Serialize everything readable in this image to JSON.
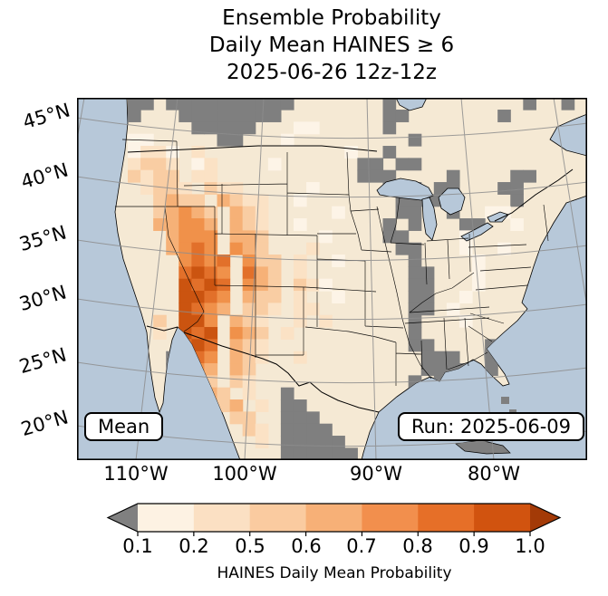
{
  "title": {
    "line1": "Ensemble Probability",
    "line2": "Daily Mean HAINES ≥ 6",
    "line3": "2025-06-26 12z-12z"
  },
  "map": {
    "lat_labels": [
      "45°N",
      "40°N",
      "35°N",
      "30°N",
      "25°N",
      "20°N"
    ],
    "lon_labels": [
      "110°W",
      "100°W",
      "90°W",
      "80°W"
    ],
    "mean_box": "Mean",
    "run_box": "Run: 2025-06-09"
  },
  "colorbar": {
    "ticks": [
      "0.1",
      "0.2",
      "0.5",
      "0.6",
      "0.7",
      "0.8",
      "0.9",
      "1.0"
    ],
    "label": "HAINES Daily Mean Probability",
    "under_color": "#808080",
    "over_color": "#a33a07",
    "segment_colors": [
      "#fdf2e3",
      "#fbe0c3",
      "#facba0",
      "#f7b077",
      "#f28f4d",
      "#e66f28",
      "#d1530f"
    ]
  },
  "colors": {
    "ocean": "#b7c8d9",
    "land": "#f5e9d4",
    "mask_gray": "#7f7f7f",
    "grid": "#8d8d8d",
    "bg": "#ffffff"
  },
  "raster": {
    "cols": 40,
    "rows": 30,
    "class_colors": {
      "a": "#fdf4e7",
      "b": "#fbe2c5",
      "c": "#f9cda3",
      "d": "#f6b177",
      "e": "#f0914a",
      "f": "#e2702a",
      "g": "#cb5410",
      "x": "#7f7f7f"
    },
    "runs": [
      [
        0,
        4,
        "xx"
      ],
      [
        0,
        7,
        "xxxxxxxxxx"
      ],
      [
        0,
        24,
        "x"
      ],
      [
        0,
        35,
        "x"
      ],
      [
        0,
        38,
        "x"
      ],
      [
        1,
        4,
        "x"
      ],
      [
        1,
        8,
        "xxxxxxxx"
      ],
      [
        1,
        24,
        "xx"
      ],
      [
        1,
        33,
        "x"
      ],
      [
        2,
        9,
        "xxxxx"
      ],
      [
        2,
        17,
        "aa"
      ],
      [
        2,
        24,
        "x"
      ],
      [
        3,
        4,
        "aa"
      ],
      [
        3,
        11,
        "xx"
      ],
      [
        3,
        16,
        "a"
      ],
      [
        3,
        26,
        "x"
      ],
      [
        4,
        4,
        "abba"
      ],
      [
        4,
        9,
        "b"
      ],
      [
        4,
        21,
        "a"
      ],
      [
        4,
        24,
        "x"
      ],
      [
        5,
        4,
        "bccb"
      ],
      [
        5,
        9,
        "ab"
      ],
      [
        5,
        15,
        "a"
      ],
      [
        5,
        22,
        "xx"
      ],
      [
        5,
        25,
        "xx"
      ],
      [
        6,
        4,
        "cbcc"
      ],
      [
        6,
        9,
        "bb"
      ],
      [
        6,
        22,
        "xxx"
      ],
      [
        6,
        29,
        "x"
      ],
      [
        6,
        34,
        "xx"
      ],
      [
        7,
        5,
        "bccb"
      ],
      [
        7,
        10,
        "cbb"
      ],
      [
        7,
        18,
        "a"
      ],
      [
        7,
        24,
        "xxx"
      ],
      [
        7,
        28,
        "xx"
      ],
      [
        7,
        33,
        "xx"
      ],
      [
        8,
        6,
        "cdcc"
      ],
      [
        8,
        11,
        "dcbb"
      ],
      [
        8,
        17,
        "a"
      ],
      [
        8,
        25,
        "xxxx"
      ],
      [
        8,
        34,
        "x"
      ],
      [
        9,
        6,
        "cdedc"
      ],
      [
        9,
        12,
        "dcb"
      ],
      [
        9,
        20,
        "a"
      ],
      [
        9,
        25,
        "xx"
      ],
      [
        9,
        29,
        "x"
      ],
      [
        9,
        32,
        "aa"
      ],
      [
        10,
        6,
        "ddeed"
      ],
      [
        10,
        12,
        "dcb"
      ],
      [
        10,
        17,
        "a"
      ],
      [
        10,
        24,
        "x"
      ],
      [
        10,
        26,
        "x"
      ],
      [
        10,
        30,
        "xx"
      ],
      [
        10,
        34,
        "a"
      ],
      [
        11,
        7,
        "deee"
      ],
      [
        11,
        12,
        "ddc"
      ],
      [
        11,
        19,
        "a"
      ],
      [
        11,
        24,
        "xx"
      ],
      [
        11,
        30,
        "a"
      ],
      [
        12,
        7,
        "defe"
      ],
      [
        12,
        12,
        "edc"
      ],
      [
        12,
        18,
        "b"
      ],
      [
        12,
        25,
        "xx"
      ],
      [
        12,
        30,
        "a"
      ],
      [
        12,
        33,
        "a"
      ],
      [
        13,
        8,
        "efef"
      ],
      [
        13,
        13,
        "ecc"
      ],
      [
        13,
        17,
        "b"
      ],
      [
        13,
        20,
        "a"
      ],
      [
        13,
        26,
        "x"
      ],
      [
        13,
        31,
        "a"
      ],
      [
        14,
        8,
        "fgfe"
      ],
      [
        14,
        13,
        "fdc"
      ],
      [
        14,
        17,
        "b"
      ],
      [
        14,
        26,
        "xx"
      ],
      [
        14,
        31,
        "a"
      ],
      [
        15,
        8,
        "gfgf"
      ],
      [
        15,
        13,
        "edc"
      ],
      [
        15,
        17,
        "cb"
      ],
      [
        15,
        19,
        "a"
      ],
      [
        15,
        26,
        "xx"
      ],
      [
        15,
        31,
        "a"
      ],
      [
        16,
        8,
        "ggfe"
      ],
      [
        16,
        13,
        "dcc"
      ],
      [
        16,
        17,
        "b"
      ],
      [
        16,
        20,
        "a"
      ],
      [
        16,
        26,
        "xx"
      ],
      [
        16,
        30,
        "a"
      ],
      [
        17,
        8,
        "gfed"
      ],
      [
        17,
        13,
        "ccb"
      ],
      [
        17,
        17,
        "bb"
      ],
      [
        17,
        26,
        "xx"
      ],
      [
        17,
        29,
        "a"
      ],
      [
        18,
        6,
        "c"
      ],
      [
        18,
        8,
        "gge"
      ],
      [
        18,
        12,
        "dcb"
      ],
      [
        18,
        17,
        "b"
      ],
      [
        18,
        19,
        "b"
      ],
      [
        18,
        26,
        "x"
      ],
      [
        18,
        30,
        "a"
      ],
      [
        19,
        6,
        "b"
      ],
      [
        19,
        8,
        "gfg"
      ],
      [
        19,
        12,
        "edc"
      ],
      [
        19,
        16,
        "b"
      ],
      [
        19,
        26,
        "x"
      ],
      [
        20,
        8,
        "fgf"
      ],
      [
        20,
        12,
        "dcb"
      ],
      [
        20,
        26,
        "xx"
      ],
      [
        20,
        32,
        "x"
      ],
      [
        21,
        7,
        "x"
      ],
      [
        21,
        9,
        "fe"
      ],
      [
        21,
        12,
        "dcb"
      ],
      [
        21,
        17,
        "b"
      ],
      [
        21,
        27,
        "xxx"
      ],
      [
        21,
        32,
        "x"
      ],
      [
        22,
        7,
        "x"
      ],
      [
        22,
        9,
        "ed"
      ],
      [
        22,
        12,
        "dc"
      ],
      [
        22,
        27,
        "xxxx"
      ],
      [
        22,
        32,
        "x"
      ],
      [
        23,
        9,
        "dc"
      ],
      [
        23,
        12,
        "cb"
      ],
      [
        23,
        26,
        "x"
      ],
      [
        23,
        28,
        "x"
      ],
      [
        23,
        31,
        "x"
      ],
      [
        24,
        10,
        "dc"
      ],
      [
        24,
        13,
        "b"
      ],
      [
        24,
        16,
        "x"
      ],
      [
        24,
        31,
        "x"
      ],
      [
        25,
        11,
        "cd"
      ],
      [
        25,
        14,
        "b"
      ],
      [
        25,
        16,
        "xx"
      ],
      [
        26,
        12,
        "cc"
      ],
      [
        26,
        16,
        "xxx"
      ],
      [
        27,
        13,
        "cb"
      ],
      [
        27,
        16,
        "xxxx"
      ],
      [
        28,
        14,
        "b"
      ],
      [
        28,
        16,
        "xxxxx"
      ],
      [
        29,
        16,
        "xxxxxx"
      ]
    ]
  },
  "chart_data": {
    "type": "heatmap",
    "title": "Ensemble Probability Daily Mean HAINES ≥ 6, 2025-06-26 12z-12z",
    "run": "2025-06-09",
    "statistic": "Mean",
    "colorbar_label": "HAINES Daily Mean Probability",
    "probability_bins": [
      0.1,
      0.2,
      0.5,
      0.6,
      0.7,
      0.8,
      0.9,
      1.0
    ],
    "bin_colors": [
      "#fdf2e3",
      "#fbe0c3",
      "#facba0",
      "#f7b077",
      "#f28f4d",
      "#e66f28",
      "#d1530f"
    ],
    "under_bin_color": "#808080",
    "over_bin_color": "#a33a07",
    "x_ticks": [
      "110°W",
      "100°W",
      "90°W",
      "80°W"
    ],
    "y_ticks": [
      "45°N",
      "40°N",
      "35°N",
      "30°N",
      "25°N",
      "20°N"
    ],
    "high_probability_regions": "Highest probabilities (0.7-1.0) over Arizona, southern Utah/Nevada and northwestern Mexico; moderate values (0.2-0.6) across the Great Basin, Rockies, New Mexico and into west Texas/northern Mexico; gray cells denote masked/no-data areas (south-central Canada, Great Lakes region, Mississippi Valley, Gulf Coast, Cuba)."
  }
}
